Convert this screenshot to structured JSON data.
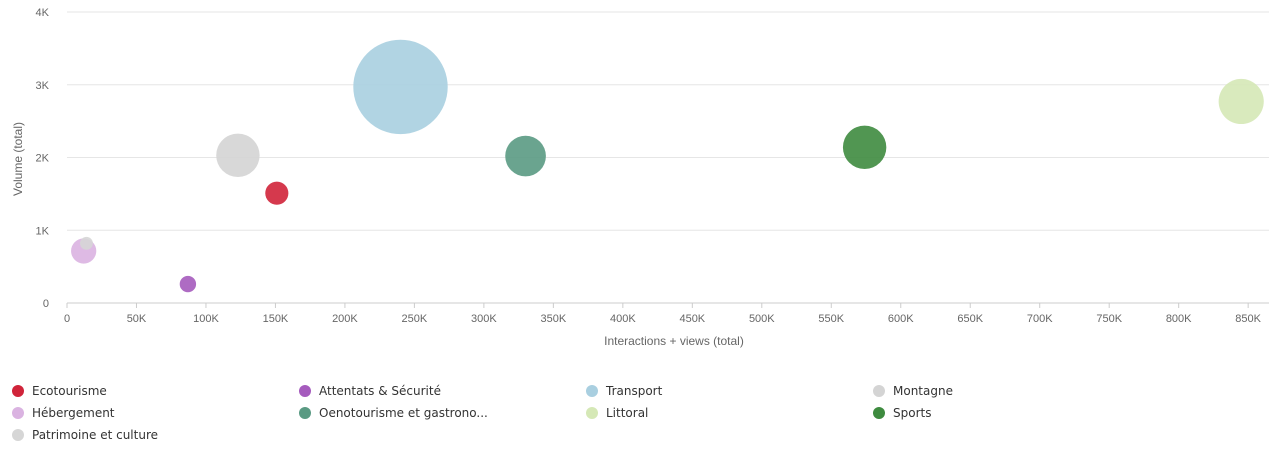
{
  "chart_data": {
    "type": "scatter",
    "bubble": true,
    "xlabel": "Interactions + views (total)",
    "ylabel": "Volume (total)",
    "xlim": [
      0,
      865000
    ],
    "ylim": [
      0,
      4000
    ],
    "x_ticks": [
      {
        "value": 0,
        "label": "0"
      },
      {
        "value": 50000,
        "label": "50K"
      },
      {
        "value": 100000,
        "label": "100K"
      },
      {
        "value": 150000,
        "label": "150K"
      },
      {
        "value": 200000,
        "label": "200K"
      },
      {
        "value": 250000,
        "label": "250K"
      },
      {
        "value": 300000,
        "label": "300K"
      },
      {
        "value": 350000,
        "label": "350K"
      },
      {
        "value": 400000,
        "label": "400K"
      },
      {
        "value": 450000,
        "label": "450K"
      },
      {
        "value": 500000,
        "label": "500K"
      },
      {
        "value": 550000,
        "label": "550K"
      },
      {
        "value": 600000,
        "label": "600K"
      },
      {
        "value": 650000,
        "label": "650K"
      },
      {
        "value": 700000,
        "label": "700K"
      },
      {
        "value": 750000,
        "label": "750K"
      },
      {
        "value": 800000,
        "label": "800K"
      },
      {
        "value": 850000,
        "label": "850K"
      }
    ],
    "y_ticks": [
      {
        "value": 0,
        "label": "0"
      },
      {
        "value": 1000,
        "label": "1K"
      },
      {
        "value": 2000,
        "label": "2K"
      },
      {
        "value": 3000,
        "label": "3K"
      },
      {
        "value": 4000,
        "label": "4K"
      }
    ],
    "grid": "horizontal",
    "legend_position": "bottom",
    "series": [
      {
        "name": "Ecotourisme",
        "color": "#d0243a",
        "x": 151000,
        "y": 1510,
        "size": 420
      },
      {
        "name": "Attentats & Sécurité",
        "color": "#a55bbd",
        "x": 87000,
        "y": 260,
        "size": 210
      },
      {
        "name": "Transport",
        "color": "#a9cfe0",
        "x": 240000,
        "y": 2970,
        "size": 7000
      },
      {
        "name": "Montagne",
        "color": "#d4d4d4",
        "x": 123000,
        "y": 2030,
        "size": 1480
      },
      {
        "name": "Hébergement",
        "color": "#dab3e1",
        "x": 12000,
        "y": 715,
        "size": 500
      },
      {
        "name": "Oenotourisme et gastrono...",
        "color": "#5a9a83",
        "x": 330000,
        "y": 2020,
        "size": 1300
      },
      {
        "name": "Littoral",
        "color": "#d5e8b6",
        "x": 845000,
        "y": 2770,
        "size": 1600
      },
      {
        "name": "Sports",
        "color": "#3e8b3f",
        "x": 574000,
        "y": 2140,
        "size": 1480
      },
      {
        "name": "Patrimoine et culture",
        "color": "#d6d6d6",
        "x": 14000,
        "y": 820,
        "size": 130
      }
    ]
  }
}
